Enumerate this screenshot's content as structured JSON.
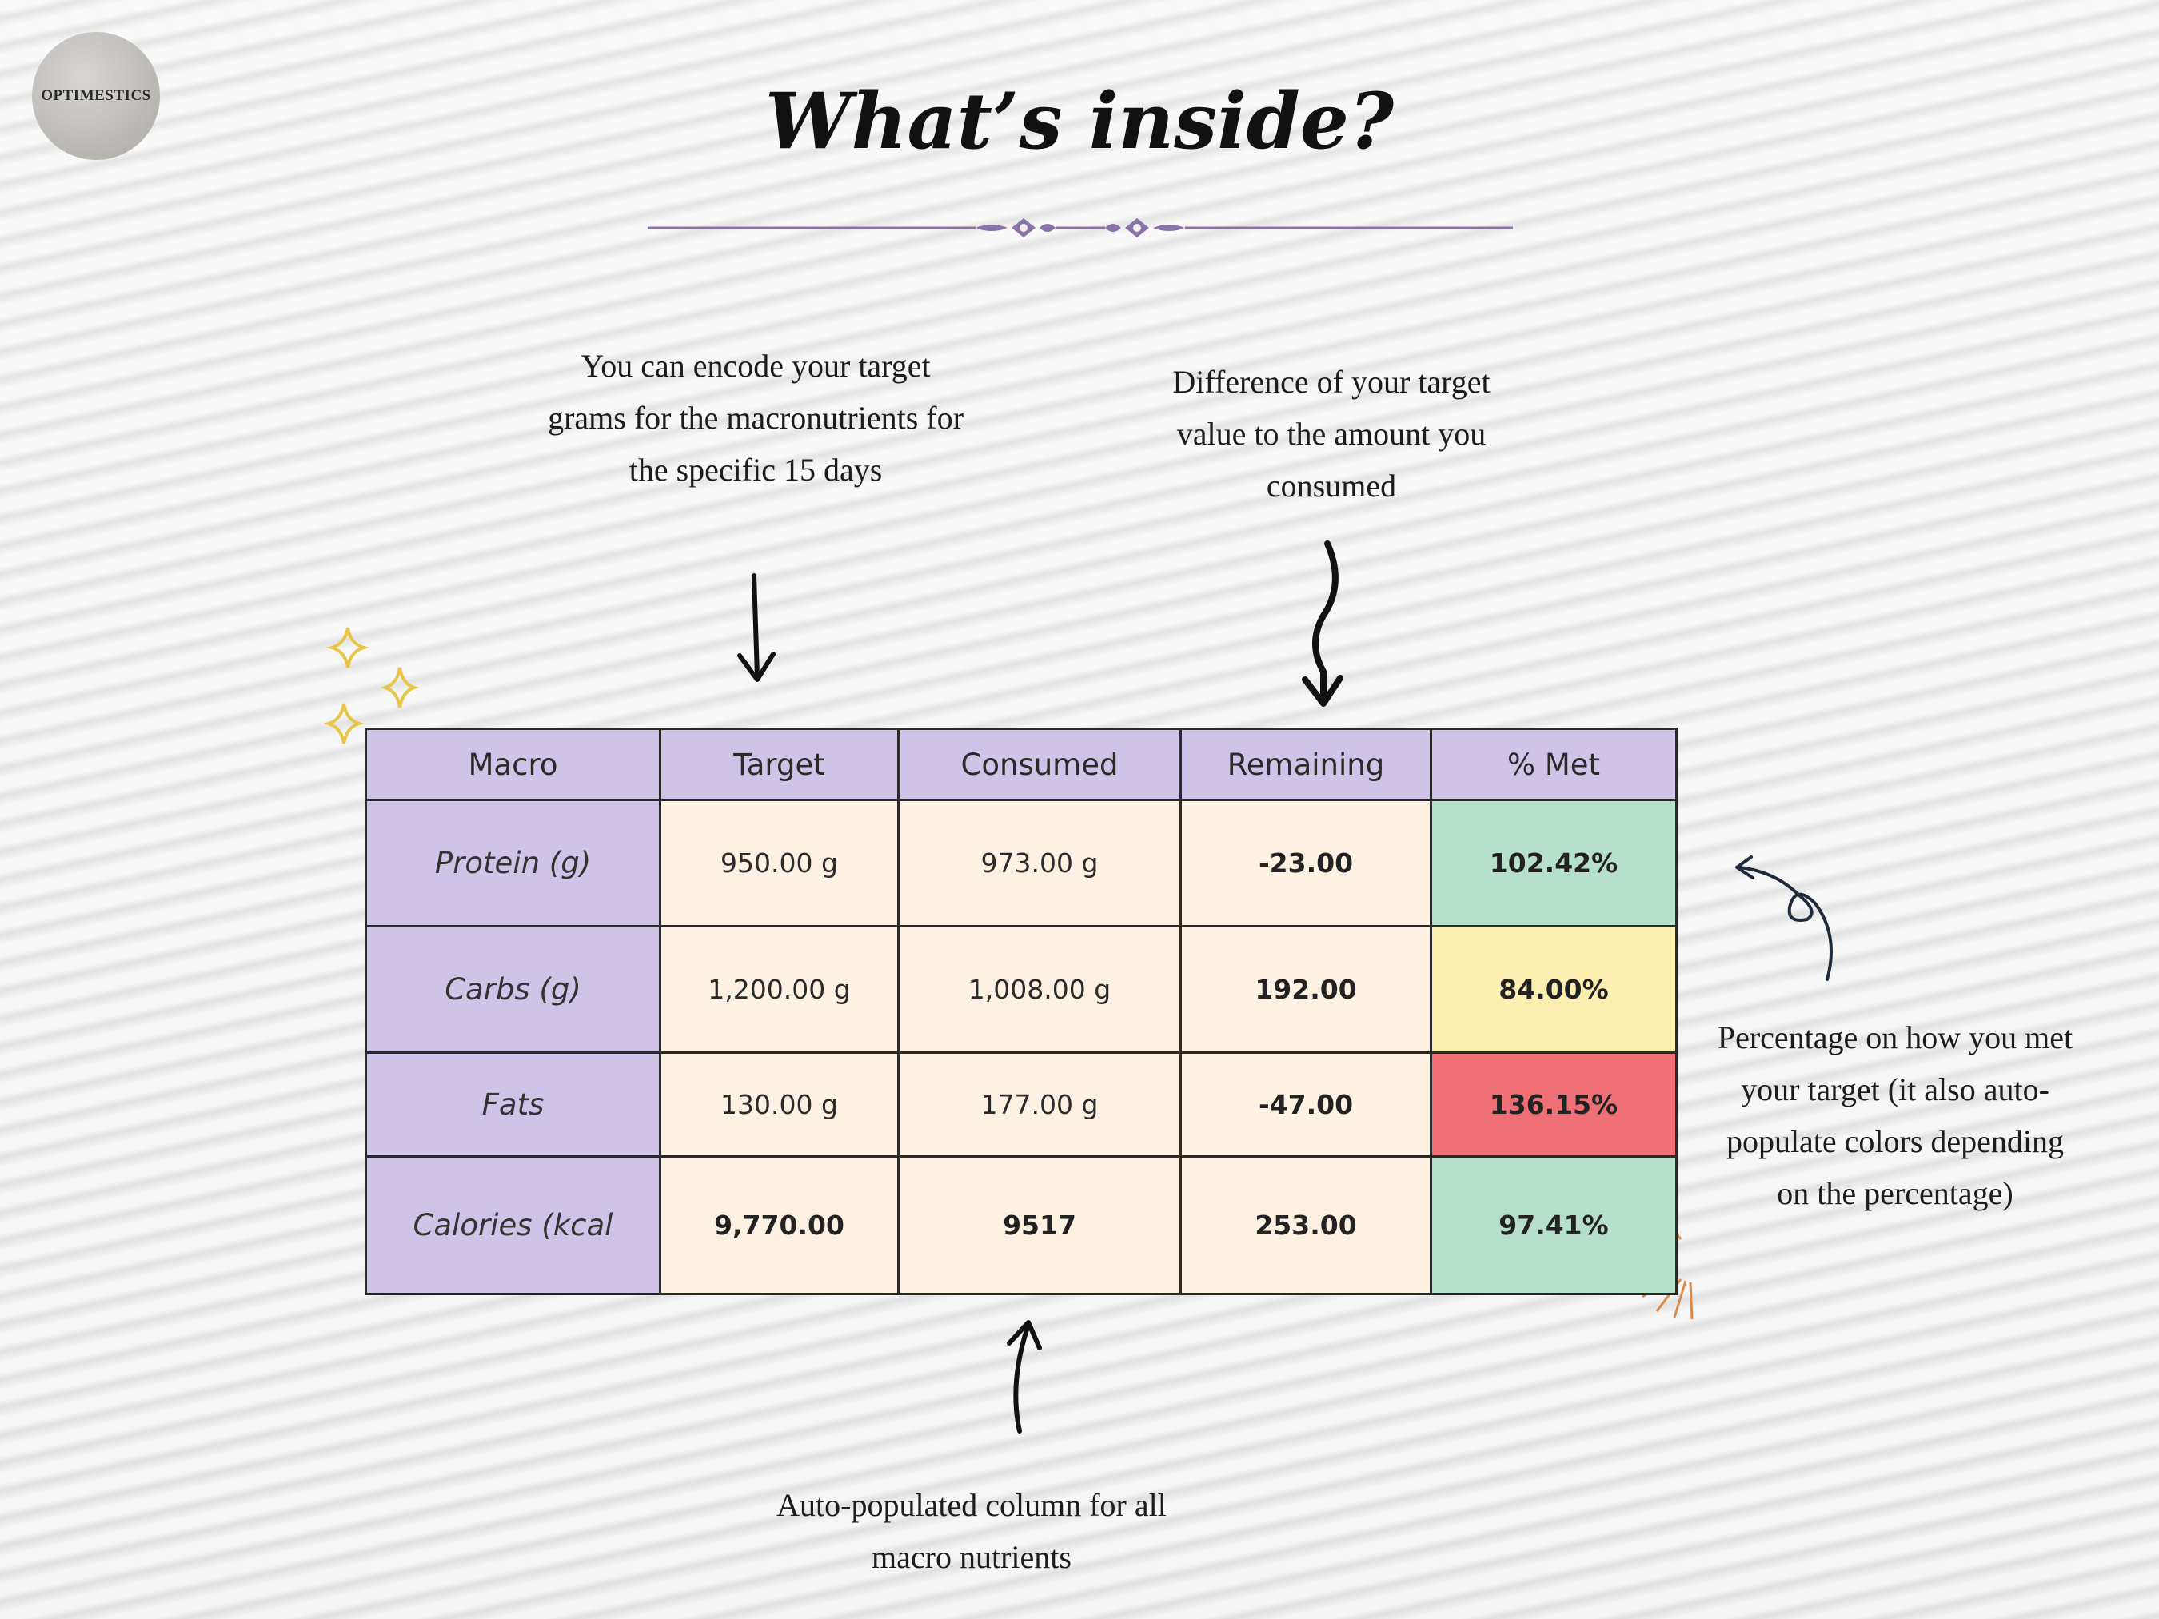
{
  "brand": {
    "logo_text": "OPTIMESTICS"
  },
  "page": {
    "title": "What’s inside?"
  },
  "annotations": {
    "target_note": "You can encode your target grams for the macronutrients for the specific 15 days",
    "remaining_note": "Difference of your target value to the amount you consumed",
    "percent_note": "Percentage on how you met your target (it also auto-populate colors depending on the percentage)",
    "consumed_note": "Auto-populated column for all macro nutrients"
  },
  "table": {
    "headers": [
      "Macro",
      "Target",
      "Consumed",
      "Remaining",
      "% Met"
    ],
    "rows": [
      {
        "macro": "Protein (g)",
        "target": "950.00 g",
        "consumed": "973.00 g",
        "remaining": "-23.00",
        "met": "102.42%",
        "status_color": "#b6e0cb"
      },
      {
        "macro": "Carbs (g)",
        "target": "1,200.00 g",
        "consumed": "1,008.00 g",
        "remaining": "192.00",
        "met": "84.00%",
        "status_color": "#fdefb2"
      },
      {
        "macro": "Fats",
        "target": "130.00 g",
        "consumed": "177.00 g",
        "remaining": "-47.00",
        "met": "136.15%",
        "status_color": "#ef6f77"
      },
      {
        "macro": "Calories (kcal",
        "target": "9,770.00",
        "consumed": "9517",
        "remaining": "253.00",
        "met": "97.41%",
        "status_color": "#b6e0cb"
      }
    ]
  },
  "colors": {
    "header_purple": "#d0c3e8",
    "cell_cream": "#fdf2e2",
    "divider_purple": "#8a73a8",
    "sparkle_gold": "#e8c547"
  }
}
